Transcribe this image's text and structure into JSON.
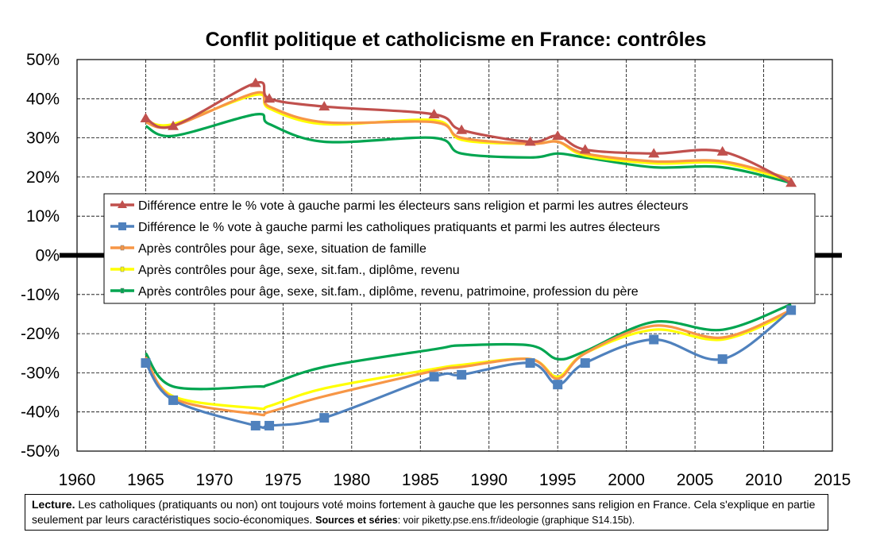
{
  "chart_data": {
    "type": "line",
    "title": "Conflit politique et catholicisme en France: contrôles",
    "xlabel": "",
    "ylabel": "",
    "xlim": [
      1960,
      2015
    ],
    "ylim": [
      -50,
      50
    ],
    "x_ticks": [
      "1960",
      "1965",
      "1970",
      "1975",
      "1980",
      "1985",
      "1990",
      "1995",
      "2000",
      "2005",
      "2010",
      "2015"
    ],
    "y_ticks": [
      "50%",
      "40%",
      "30%",
      "20%",
      "10%",
      "0%",
      "-10%",
      "-20%",
      "-30%",
      "-40%",
      "-50%"
    ],
    "grid": true,
    "legend_position": "center-left",
    "series": [
      {
        "name": "Différence entre le % vote à gauche parmi les électeurs sans religion et parmi les autres électeurs",
        "color": "#c0504d",
        "marker": "triangle",
        "x": [
          1965,
          1967,
          1973,
          1974,
          1978,
          1986,
          1988,
          1993,
          1995,
          1997,
          2002,
          2007,
          2012
        ],
        "values": [
          35,
          33,
          44,
          40,
          38,
          36,
          32,
          29,
          30.5,
          27,
          26,
          26.5,
          18.5
        ]
      },
      {
        "name": "Différence le % vote à gauche parmi les catholiques pratiquants et parmi les autres électeurs",
        "color": "#4f81bd",
        "marker": "square",
        "x": [
          1965,
          1967,
          1973,
          1974,
          1978,
          1986,
          1988,
          1993,
          1995,
          1997,
          2002,
          2007,
          2012
        ],
        "values": [
          -27.5,
          -37,
          -43.5,
          -43.5,
          -41.5,
          -31,
          -30.5,
          -27.5,
          -33,
          -27.5,
          -21.5,
          -26.5,
          -14
        ]
      },
      {
        "name": "Après contrôles pour âge, sexe, situation de famille",
        "color": "#f79646",
        "marker": "none",
        "x": [
          1965,
          1967,
          1973,
          1974,
          1978,
          1986,
          1988,
          1993,
          1995,
          1997,
          2002,
          2007,
          2012
        ],
        "values_top": [
          34,
          33,
          41.5,
          38,
          34,
          34,
          30,
          28.5,
          29,
          26,
          24,
          24,
          19.5
        ],
        "values_bottom": [
          -26,
          -36.5,
          -40.5,
          -40,
          -36,
          -29.5,
          -28.5,
          -26.5,
          -31.5,
          -25,
          -18,
          -21,
          -14
        ]
      },
      {
        "name": "Après contrôles pour âge, sexe, sit.fam., diplôme, revenu",
        "color": "#ffff00",
        "marker": "none",
        "x": [
          1965,
          1967,
          1973,
          1974,
          1978,
          1986,
          1988,
          1993,
          1995,
          1997,
          2002,
          2007,
          2012
        ],
        "values_top": [
          34.5,
          33.5,
          41,
          37.5,
          33.5,
          34.5,
          29.5,
          28.5,
          29,
          25.5,
          23.5,
          23.5,
          19
        ],
        "values_bottom": [
          -26.5,
          -36,
          -39,
          -38.5,
          -34,
          -29,
          -28,
          -26.5,
          -31,
          -25,
          -19,
          -21.5,
          -14.5
        ]
      },
      {
        "name": "Après contrôles pour âge, sexe, sit.fam., diplôme, revenu, patrimoine, profession du père",
        "color": "#00a550",
        "marker": "none",
        "x": [
          1965,
          1967,
          1973,
          1974,
          1978,
          1986,
          1988,
          1993,
          1995,
          1997,
          2002,
          2007,
          2012
        ],
        "values_top": [
          33,
          30.5,
          36,
          33.5,
          29,
          30,
          26,
          25,
          26,
          25,
          22.5,
          22.5,
          18.5
        ],
        "values_bottom": [
          -25,
          -33.5,
          -33.5,
          -33,
          -28.5,
          -24,
          -23,
          -23,
          -26.5,
          -24.5,
          -17,
          -19,
          -12.5
        ]
      }
    ]
  },
  "note": {
    "lead": "Lecture.",
    "text": " Les catholiques (pratiquants ou non) ont toujours voté moins fortement à gauche que les personnes sans religion en France. Cela s'explique en partie seulement par leurs caractéristiques socio-économiques. ",
    "sources_label": "Sources et séries",
    "sources_text": ": voir piketty.pse.ens.fr/ideologie (graphique S14.15b)."
  }
}
